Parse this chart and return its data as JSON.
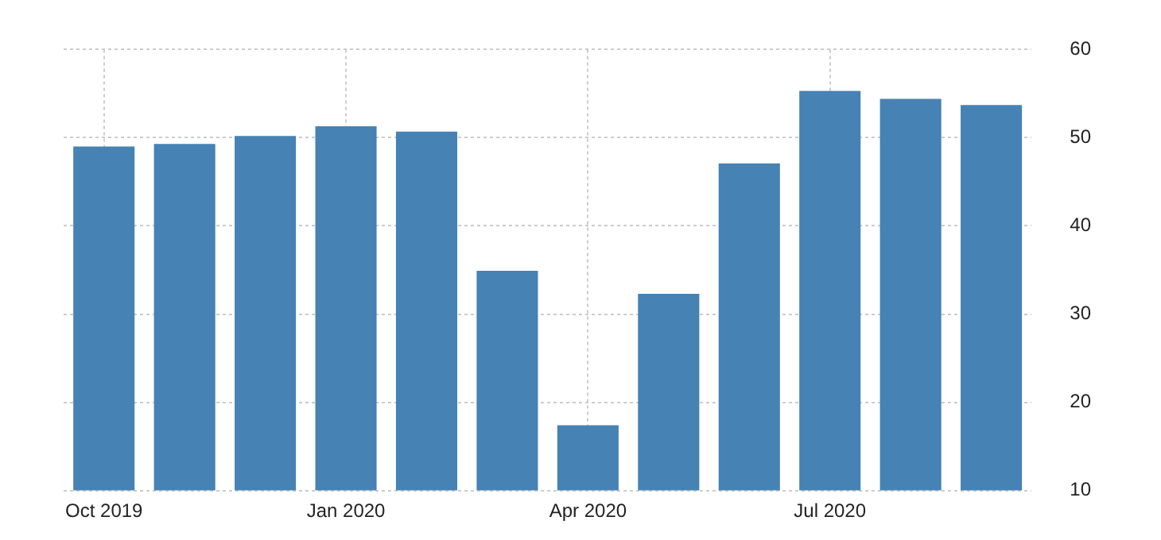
{
  "chart_data": {
    "type": "bar",
    "categories": [
      "Oct 2019",
      null,
      null,
      "Jan 2020",
      null,
      null,
      "Apr 2020",
      null,
      null,
      "Jul 2020",
      null,
      null
    ],
    "values": [
      49.0,
      49.3,
      50.2,
      51.3,
      50.7,
      34.9,
      17.4,
      32.3,
      47.1,
      55.3,
      54.4,
      53.7
    ],
    "color": "#4682b4",
    "ylim": [
      10,
      60
    ],
    "yticks": [
      10,
      20,
      30,
      40,
      50,
      60
    ],
    "grid": true
  }
}
